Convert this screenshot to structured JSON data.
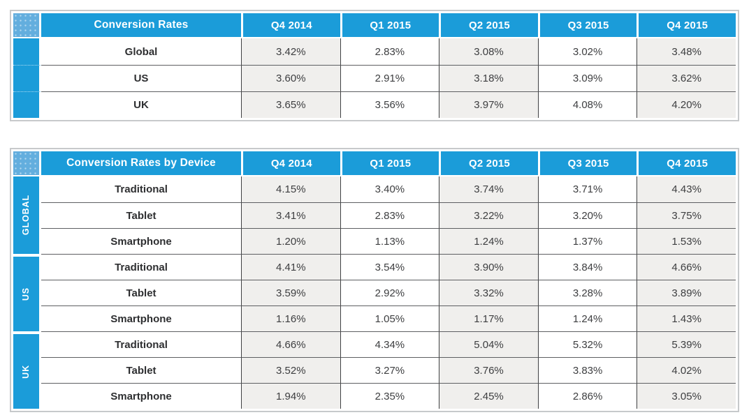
{
  "chart_data": [
    {
      "type": "table",
      "title": "Conversion Rates",
      "columns": [
        "Q4 2014",
        "Q1 2015",
        "Q2 2015",
        "Q3 2015",
        "Q4 2015"
      ],
      "rows": [
        {
          "label": "Global",
          "values": [
            "3.42%",
            "2.83%",
            "3.08%",
            "3.02%",
            "3.48%"
          ]
        },
        {
          "label": "US",
          "values": [
            "3.60%",
            "2.91%",
            "3.18%",
            "3.09%",
            "3.62%"
          ]
        },
        {
          "label": "UK",
          "values": [
            "3.65%",
            "3.56%",
            "3.97%",
            "4.08%",
            "4.20%"
          ]
        }
      ]
    },
    {
      "type": "table",
      "title": "Conversion Rates by Device",
      "columns": [
        "Q4 2014",
        "Q1 2015",
        "Q2 2015",
        "Q3 2015",
        "Q4 2015"
      ],
      "groups": [
        {
          "label": "GLOBAL",
          "rows": [
            {
              "label": "Traditional",
              "values": [
                "4.15%",
                "3.40%",
                "3.74%",
                "3.71%",
                "4.43%"
              ]
            },
            {
              "label": "Tablet",
              "values": [
                "3.41%",
                "2.83%",
                "3.22%",
                "3.20%",
                "3.75%"
              ]
            },
            {
              "label": "Smartphone",
              "values": [
                "1.20%",
                "1.13%",
                "1.24%",
                "1.37%",
                "1.53%"
              ]
            }
          ]
        },
        {
          "label": "US",
          "rows": [
            {
              "label": "Traditional",
              "values": [
                "4.41%",
                "3.54%",
                "3.90%",
                "3.84%",
                "4.66%"
              ]
            },
            {
              "label": "Tablet",
              "values": [
                "3.59%",
                "2.92%",
                "3.32%",
                "3.28%",
                "3.89%"
              ]
            },
            {
              "label": "Smartphone",
              "values": [
                "1.16%",
                "1.05%",
                "1.17%",
                "1.24%",
                "1.43%"
              ]
            }
          ]
        },
        {
          "label": "UK",
          "rows": [
            {
              "label": "Traditional",
              "values": [
                "4.66%",
                "4.34%",
                "5.04%",
                "5.32%",
                "5.39%"
              ]
            },
            {
              "label": "Tablet",
              "values": [
                "3.52%",
                "3.27%",
                "3.76%",
                "3.83%",
                "4.02%"
              ]
            },
            {
              "label": "Smartphone",
              "values": [
                "1.94%",
                "2.35%",
                "2.45%",
                "2.86%",
                "3.05%"
              ]
            }
          ]
        }
      ]
    }
  ],
  "colors": {
    "header_blue": "#1b9cd9",
    "corner_blue": "#63aede",
    "alt_cell_gray": "#f0efed",
    "frame_border": "#c7c9cb",
    "grid_line_vertical": "#3f4042",
    "grid_line_horizontal": "#5d5e61",
    "value_text": "#3d3e40",
    "label_text": "#2e2f31"
  }
}
